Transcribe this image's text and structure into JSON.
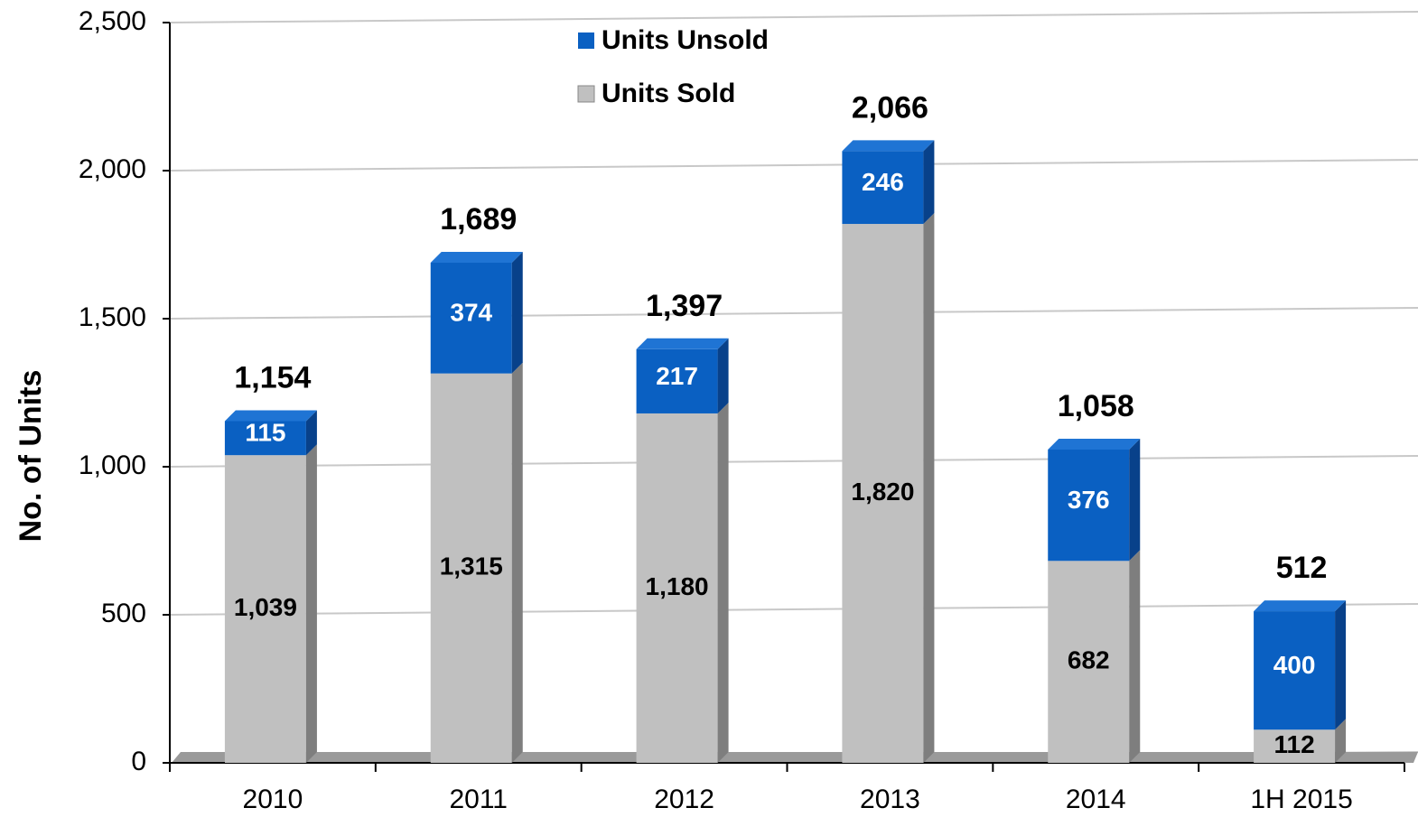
{
  "chart_data": {
    "type": "bar",
    "stacked": true,
    "y_label": "No. of Units",
    "categories": [
      "2010",
      "2011",
      "2012",
      "2013",
      "2014",
      "1H 2015"
    ],
    "series": [
      {
        "name": "Units Sold",
        "color": "#c0c0c0",
        "values": [
          1039,
          1315,
          1180,
          1820,
          682,
          112
        ],
        "value_labels": [
          "1,039",
          "1,315",
          "1,180",
          "1,820",
          "682",
          "112"
        ]
      },
      {
        "name": "Units Unsold",
        "color": "#0a60c2",
        "values": [
          115,
          374,
          217,
          246,
          376,
          400
        ]
      }
    ],
    "totals": {
      "values": [
        1154,
        1689,
        1397,
        2066,
        1058,
        512
      ],
      "value_labels": [
        "1,154",
        "1,689",
        "1,397",
        "2,066",
        "1,058",
        "512"
      ]
    },
    "ylim": [
      0,
      2500
    ],
    "yticks": [
      0,
      500,
      {
        "value": 1000,
        "label": "1,000"
      },
      {
        "value": 1500,
        "label": "1,500"
      },
      {
        "value": 2000,
        "label": "2,000"
      },
      {
        "value": 2500,
        "label": "2,500"
      }
    ],
    "grid": true
  }
}
